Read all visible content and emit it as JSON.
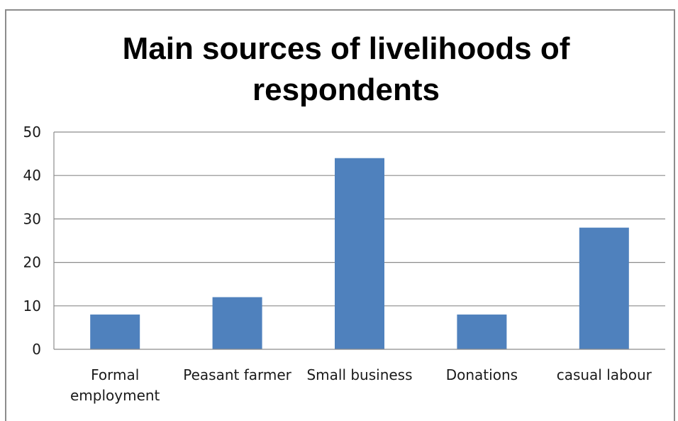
{
  "chart_data": {
    "type": "bar",
    "title_lines": [
      "Main sources of livelihoods of",
      "respondents"
    ],
    "categories": [
      "Formal employment",
      "Peasant farmer",
      "Small business",
      "Donations",
      "casual labour"
    ],
    "category_lines": [
      [
        "Formal",
        "employment"
      ],
      [
        "Peasant farmer"
      ],
      [
        "Small business"
      ],
      [
        "Donations"
      ],
      [
        "casual labour"
      ]
    ],
    "values": [
      8,
      12,
      44,
      8,
      28
    ],
    "ylim": [
      0,
      50
    ],
    "yticks": [
      "0",
      "10",
      "20",
      "30",
      "40",
      "50"
    ],
    "xlabel": "",
    "ylabel": "",
    "grid": true,
    "legend": "none",
    "bar_color": "#4f81bd"
  }
}
